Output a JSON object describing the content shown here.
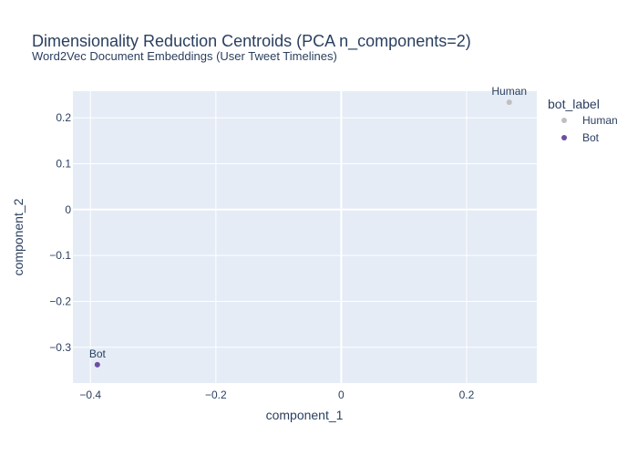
{
  "chart_data": {
    "type": "scatter",
    "title": "Dimensionality Reduction Centroids (PCA n_components=2)",
    "subtitle": "Word2Vec Document Embeddings (User Tweet Timelines)",
    "xlabel": "component_1",
    "ylabel": "component_2",
    "xlim": [
      -0.428,
      0.312
    ],
    "ylim": [
      -0.378,
      0.258
    ],
    "xticks": [
      -0.4,
      -0.2,
      0,
      0.2
    ],
    "xtick_labels": [
      "−0.4",
      "−0.2",
      "0",
      "0.2"
    ],
    "yticks": [
      -0.3,
      -0.2,
      -0.1,
      0,
      0.1,
      0.2
    ],
    "ytick_labels": [
      "−0.3",
      "−0.2",
      "−0.1",
      "0",
      "0.1",
      "0.2"
    ],
    "grid": true,
    "legend": {
      "title": "bot_label",
      "position": "right"
    },
    "series": [
      {
        "name": "Human",
        "color": "#bfbfbf",
        "points": [
          {
            "x": 0.268,
            "y": 0.234,
            "label": "Human"
          }
        ]
      },
      {
        "name": "Bot",
        "color": "#6a4fa3",
        "points": [
          {
            "x": -0.389,
            "y": -0.338,
            "label": "Bot"
          }
        ]
      }
    ]
  }
}
